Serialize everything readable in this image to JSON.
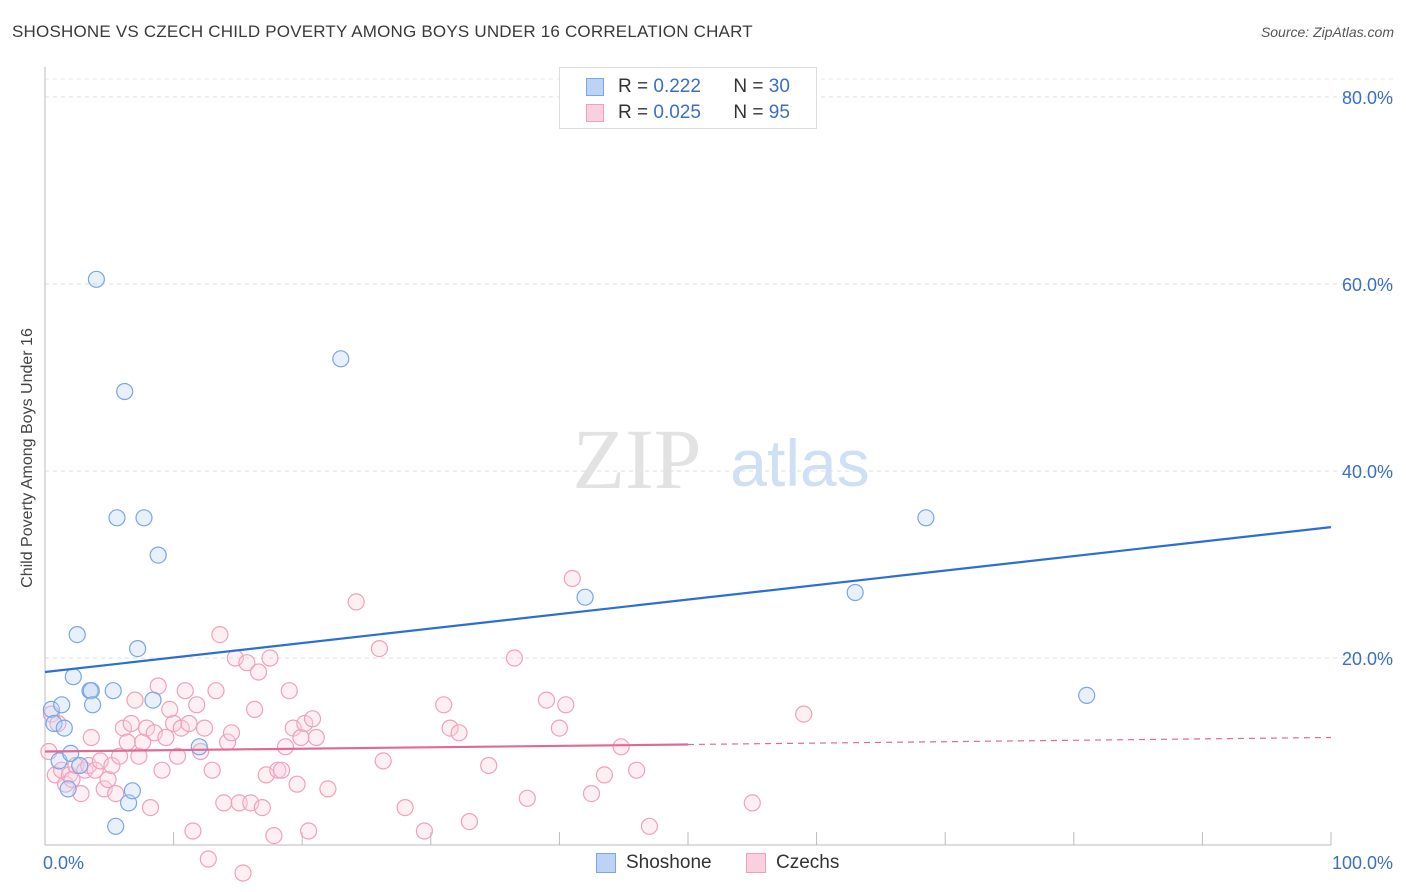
{
  "title": "SHOSHONE VS CZECH CHILD POVERTY AMONG BOYS UNDER 16 CORRELATION CHART",
  "source": "Source: ZipAtlas.com",
  "watermark": {
    "zip": "ZIP",
    "atlas": "atlas"
  },
  "legend": {
    "shoshone": {
      "r_label": "R =",
      "r_value": "0.222",
      "n_label": "N =",
      "n_value": "30"
    },
    "czechs": {
      "r_label": "R =",
      "r_value": "0.025",
      "n_label": "N =",
      "n_value": "95"
    }
  },
  "bottom_legend": {
    "shoshone": "Shoshone",
    "czechs": "Czechs"
  },
  "chart_data": {
    "type": "scatter",
    "xlabel": "",
    "ylabel": "Child Poverty Among Boys Under 16",
    "x_tick_labels": [
      "0.0%",
      "100.0%"
    ],
    "y_tick_labels": [
      "20.0%",
      "40.0%",
      "60.0%",
      "80.0%"
    ],
    "xlim": [
      0,
      100
    ],
    "ylim": [
      0,
      80
    ],
    "grid": true,
    "legend_position": "top-center",
    "colors": {
      "shoshone": "#7aa6e6",
      "shoshone_line": "#2a6fd6",
      "czechs": "#f0a0bc",
      "czechs_line": "#e06a94",
      "tick_text": "#3a6fc4"
    },
    "series": [
      {
        "name": "Shoshone",
        "trend": {
          "x": [
            0,
            100
          ],
          "y": [
            18.5,
            34.0
          ]
        },
        "points": [
          [
            0.5,
            14.5
          ],
          [
            0.7,
            13.0
          ],
          [
            1.1,
            9.0
          ],
          [
            1.3,
            15.0
          ],
          [
            1.5,
            12.5
          ],
          [
            1.8,
            6.0
          ],
          [
            2.0,
            9.8
          ],
          [
            2.2,
            18.0
          ],
          [
            2.5,
            22.5
          ],
          [
            2.7,
            8.5
          ],
          [
            3.5,
            16.5
          ],
          [
            3.6,
            16.5
          ],
          [
            3.7,
            15.0
          ],
          [
            4.0,
            60.5
          ],
          [
            5.3,
            16.5
          ],
          [
            5.5,
            2.0
          ],
          [
            5.6,
            35.0
          ],
          [
            6.2,
            48.5
          ],
          [
            6.5,
            4.5
          ],
          [
            6.8,
            5.8
          ],
          [
            7.2,
            21.0
          ],
          [
            7.7,
            35.0
          ],
          [
            8.4,
            15.5
          ],
          [
            8.8,
            31.0
          ],
          [
            12.0,
            10.5
          ],
          [
            23.0,
            52.0
          ],
          [
            42.0,
            26.5
          ],
          [
            63.0,
            27.0
          ],
          [
            68.5,
            35.0
          ],
          [
            81.0,
            16.0
          ]
        ]
      },
      {
        "name": "Czechs",
        "trend": {
          "x": [
            0,
            100
          ],
          "y": [
            10.0,
            11.5
          ]
        },
        "points": [
          [
            0.3,
            10.0
          ],
          [
            0.5,
            14.0
          ],
          [
            0.8,
            7.5
          ],
          [
            1.0,
            13.0
          ],
          [
            1.3,
            8.0
          ],
          [
            1.6,
            6.5
          ],
          [
            1.9,
            7.5
          ],
          [
            2.1,
            7.0
          ],
          [
            2.4,
            8.5
          ],
          [
            2.8,
            5.5
          ],
          [
            3.1,
            8.0
          ],
          [
            3.4,
            8.5
          ],
          [
            3.6,
            11.5
          ],
          [
            3.9,
            8.0
          ],
          [
            4.3,
            9.0
          ],
          [
            4.6,
            6.0
          ],
          [
            4.9,
            7.0
          ],
          [
            5.2,
            8.5
          ],
          [
            5.5,
            5.5
          ],
          [
            5.8,
            9.5
          ],
          [
            6.1,
            12.5
          ],
          [
            6.4,
            11.0
          ],
          [
            6.7,
            13.0
          ],
          [
            7.0,
            15.5
          ],
          [
            7.3,
            9.5
          ],
          [
            7.6,
            11.0
          ],
          [
            7.9,
            12.5
          ],
          [
            8.2,
            4.0
          ],
          [
            8.5,
            12.0
          ],
          [
            8.8,
            17.0
          ],
          [
            9.1,
            8.0
          ],
          [
            9.4,
            11.5
          ],
          [
            9.7,
            14.5
          ],
          [
            10.0,
            13.0
          ],
          [
            10.3,
            9.5
          ],
          [
            10.6,
            12.5
          ],
          [
            10.9,
            16.5
          ],
          [
            11.2,
            13.0
          ],
          [
            11.5,
            1.5
          ],
          [
            11.8,
            15.0
          ],
          [
            12.1,
            10.0
          ],
          [
            12.4,
            12.5
          ],
          [
            12.7,
            -1.5
          ],
          [
            13.0,
            8.0
          ],
          [
            13.3,
            16.5
          ],
          [
            13.6,
            22.5
          ],
          [
            13.9,
            4.5
          ],
          [
            14.2,
            11.0
          ],
          [
            14.5,
            12.0
          ],
          [
            14.8,
            20.0
          ],
          [
            15.1,
            4.5
          ],
          [
            15.4,
            -3.0
          ],
          [
            15.7,
            19.5
          ],
          [
            16.0,
            4.5
          ],
          [
            16.3,
            14.5
          ],
          [
            16.6,
            18.5
          ],
          [
            16.9,
            4.0
          ],
          [
            17.2,
            7.5
          ],
          [
            17.5,
            20.0
          ],
          [
            17.8,
            1.0
          ],
          [
            18.1,
            8.0
          ],
          [
            18.4,
            8.0
          ],
          [
            18.7,
            10.5
          ],
          [
            19.0,
            16.5
          ],
          [
            19.3,
            12.5
          ],
          [
            19.6,
            6.5
          ],
          [
            19.9,
            11.5
          ],
          [
            20.2,
            13.0
          ],
          [
            20.5,
            1.5
          ],
          [
            20.8,
            13.5
          ],
          [
            21.1,
            11.5
          ],
          [
            22.0,
            6.0
          ],
          [
            24.2,
            26.0
          ],
          [
            26.0,
            21.0
          ],
          [
            26.3,
            9.0
          ],
          [
            28.0,
            4.0
          ],
          [
            29.5,
            1.5
          ],
          [
            31.0,
            15.0
          ],
          [
            31.5,
            12.5
          ],
          [
            32.2,
            12.0
          ],
          [
            33.0,
            2.5
          ],
          [
            34.5,
            8.5
          ],
          [
            36.5,
            20.0
          ],
          [
            37.5,
            5.0
          ],
          [
            39.0,
            15.5
          ],
          [
            40.0,
            12.5
          ],
          [
            40.5,
            15.0
          ],
          [
            41.0,
            28.5
          ],
          [
            42.5,
            5.5
          ],
          [
            43.5,
            7.5
          ],
          [
            44.8,
            10.5
          ],
          [
            46.0,
            8.0
          ],
          [
            47.0,
            2.0
          ],
          [
            55.0,
            4.5
          ],
          [
            59.0,
            14.0
          ]
        ]
      }
    ]
  }
}
